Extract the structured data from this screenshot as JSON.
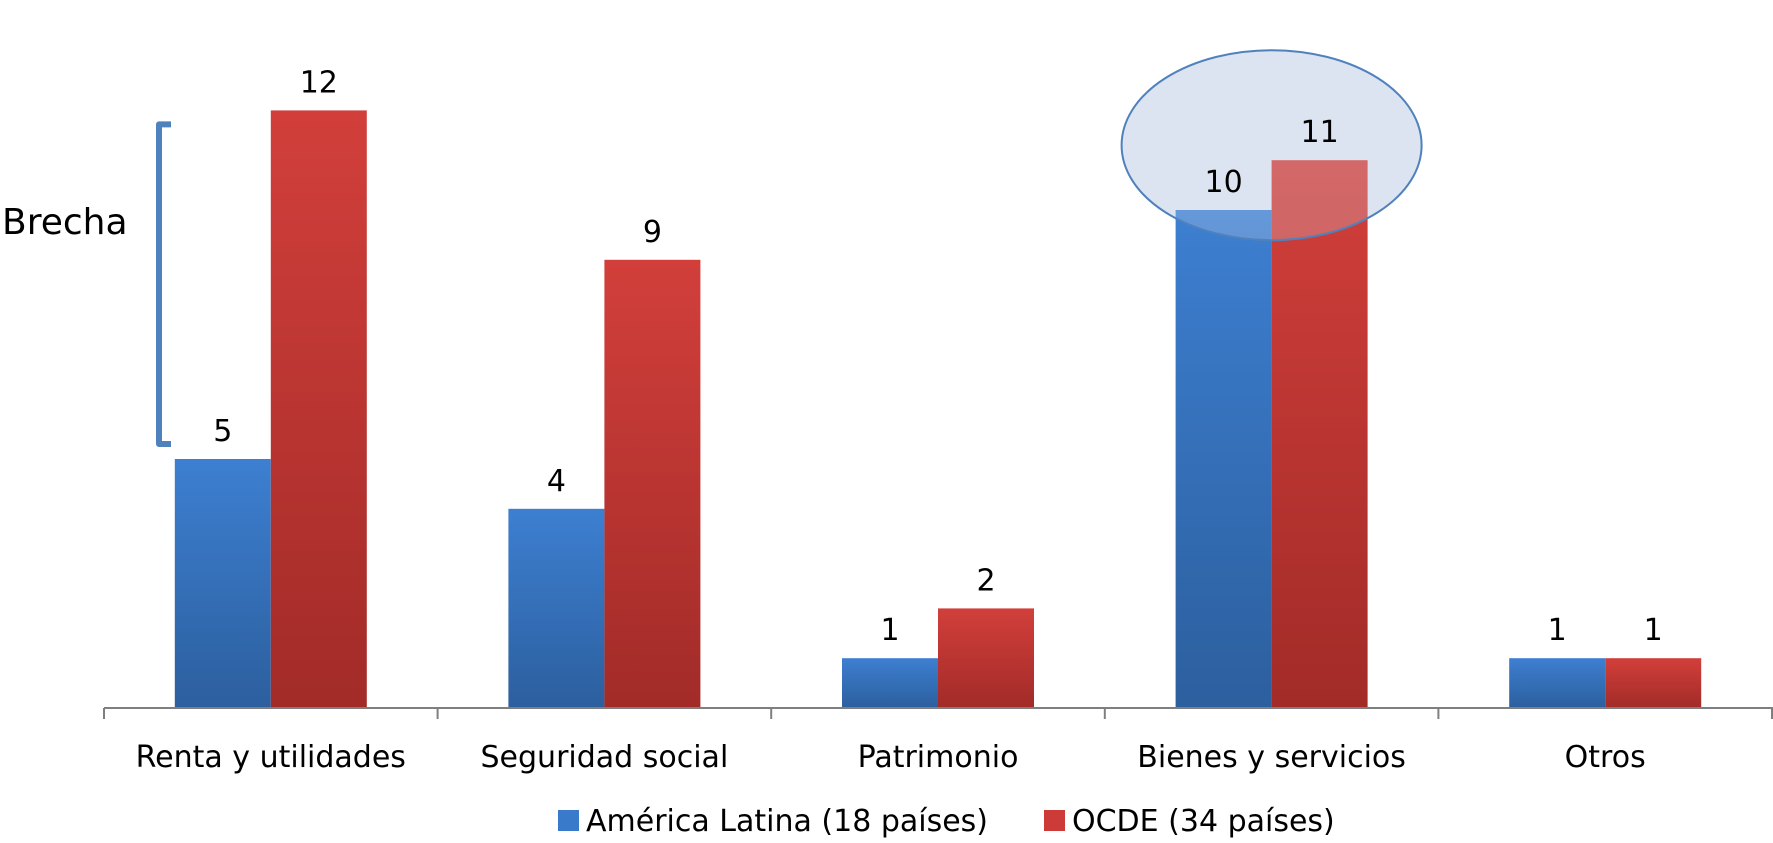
{
  "chart_data": {
    "type": "bar",
    "categories": [
      "Renta y utilidades",
      "Seguridad social",
      "Patrimonio",
      "Bienes y servicios",
      "Otros"
    ],
    "series": [
      {
        "name": "América Latina (18 países)",
        "values": [
          5,
          4,
          1,
          10,
          1
        ],
        "labels": [
          "5",
          "4",
          "1",
          "10",
          "1"
        ],
        "color": "#3a7acb"
      },
      {
        "name": "OCDE (34 países)",
        "values": [
          12,
          9,
          2,
          11,
          1
        ],
        "labels": [
          "12",
          "9",
          "2",
          "11",
          "1"
        ],
        "color": "#cc3b37"
      }
    ],
    "ylim": [
      0,
      14
    ],
    "grid": false,
    "legend": "bottom",
    "annotations": {
      "gap_label": "Brecha",
      "highlight_category": "Bienes y servicios"
    }
  },
  "colors": {
    "axis": "#7f7f7f",
    "bracket": "#4f81bd",
    "ellipse_fill": "#dbe5f1",
    "ellipse_stroke": "#4f81bd"
  }
}
